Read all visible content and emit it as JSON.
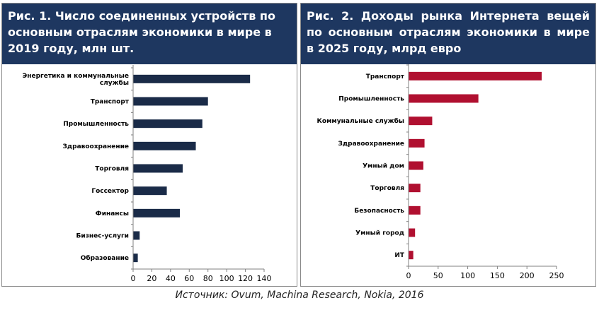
{
  "source": "Источник: Ovum, Machina Research, Nokia, 2016",
  "chart_data": [
    {
      "type": "bar",
      "orientation": "horizontal",
      "title": "Рис. 1. Число соединенных устройств по основным отраслям экономики в мире в 2019 году, млн шт.",
      "categories": [
        [
          "Энергетика и коммунальные",
          "службы"
        ],
        [
          "Транспорт"
        ],
        [
          "Промышленность"
        ],
        [
          "Здравоохранение"
        ],
        [
          "Торговля"
        ],
        [
          "Госсектор"
        ],
        [
          "Финансы"
        ],
        [
          "Бизнес-услуги"
        ],
        [
          "Образование"
        ]
      ],
      "values": [
        125,
        80,
        74,
        67,
        53,
        36,
        50,
        7,
        5
      ],
      "xlim": [
        0,
        140
      ],
      "xticks": [
        "0",
        "20",
        "40",
        "60",
        "80",
        "100",
        "120",
        "140"
      ],
      "bar_color": "#1a2b48",
      "grid": false,
      "legend": "none"
    },
    {
      "type": "bar",
      "orientation": "horizontal",
      "title": "Рис. 2. Доходы рынка Интернета вещей по основным отраслям экономики в мире в 2025 году, млрд евро",
      "categories": [
        [
          "Транспорт"
        ],
        [
          "Промышленность"
        ],
        [
          "Коммунальные службы"
        ],
        [
          "Здравоохранение"
        ],
        [
          "Умный дом"
        ],
        [
          "Торговля"
        ],
        [
          "Безопасность"
        ],
        [
          "Умный город"
        ],
        [
          "ИТ"
        ]
      ],
      "values": [
        225,
        118,
        40,
        27,
        25,
        20,
        20,
        11,
        8
      ],
      "xlim": [
        0,
        250
      ],
      "xticks": [
        "0",
        "50",
        "100",
        "150",
        "200",
        "250"
      ],
      "bar_color": "#b01030",
      "grid": false,
      "legend": "none"
    }
  ]
}
